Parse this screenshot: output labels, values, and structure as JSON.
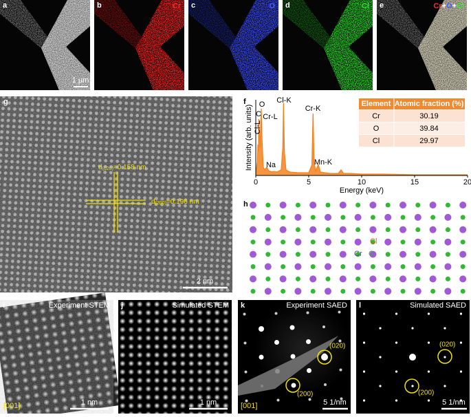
{
  "panels": {
    "a": {
      "letter": "a",
      "scale_bar": "1 μm"
    },
    "b": {
      "letter": "b",
      "label": "Cr"
    },
    "c": {
      "letter": "c",
      "label": "O"
    },
    "d": {
      "letter": "d",
      "label": "Cl"
    },
    "e": {
      "letter": "e",
      "label_parts": [
        "Cr",
        "+",
        "O",
        "+",
        "Cl"
      ]
    },
    "f": {
      "letter": "f",
      "table": {
        "header": [
          "Element",
          "Atomic fraction (%)"
        ],
        "rows": [
          [
            "Cr",
            30.19
          ],
          [
            "O",
            39.84
          ],
          [
            "Cl",
            29.97
          ]
        ]
      }
    },
    "g": {
      "letter": "g",
      "d020": {
        "symbol": "d",
        "subscript": "(020)",
        "text": "=0.158 nm"
      },
      "d200": {
        "symbol": "d",
        "subscript": "(200)",
        "text": "=0.196 nm"
      },
      "scale_bar": "2 nm"
    },
    "h": {
      "letter": "h",
      "labels": [
        "Cl",
        "Cr",
        "O"
      ]
    },
    "i": {
      "letter": "i",
      "title": "Experiment STEM",
      "zone": "[001]",
      "scale_bar": "1 nm"
    },
    "j": {
      "letter": "j",
      "title": "Simulated STEM",
      "scale_bar": "1 nm"
    },
    "k": {
      "letter": "k",
      "title": "Experiment SAED",
      "zone": "[001]",
      "spots": [
        "(020)",
        "(200)"
      ],
      "scale_bar": "5 1/nm"
    },
    "l": {
      "letter": "l",
      "title": "Simulated SAED",
      "spots": [
        "(020)",
        "(200)"
      ],
      "scale_bar": "5 1/nm"
    }
  },
  "chart_data": {
    "type": "line",
    "xlabel": "Energy (keV)",
    "ylabel": "Intensity (arb. units)",
    "color": "#f5821f",
    "x": [
      0,
      0.15,
      0.2,
      0.25,
      0.28,
      0.4,
      0.52,
      0.57,
      0.7,
      0.85,
      1.04,
      1.2,
      1.5,
      1.7,
      2.0,
      2.4,
      2.55,
      2.62,
      2.7,
      2.85,
      3.2,
      4,
      5,
      5.3,
      5.41,
      5.5,
      5.65,
      5.9,
      6.1,
      6.5,
      7,
      7.8,
      8.05,
      8.3,
      9,
      10,
      12,
      15,
      20
    ],
    "values": [
      2,
      20,
      45,
      35,
      82,
      40,
      97,
      60,
      12,
      8,
      12,
      7,
      5,
      6,
      5,
      8,
      40,
      105,
      35,
      8,
      5,
      4,
      4,
      15,
      90,
      20,
      6,
      16,
      5,
      4,
      3,
      3,
      8,
      3,
      3,
      2,
      2,
      1,
      1
    ],
    "annotations": [
      "C",
      "O",
      "Cl-L",
      "Cr-L",
      "Na",
      "Cl-K",
      "Cr-K",
      "Mn-K"
    ],
    "xlim": [
      0,
      20
    ],
    "ylim": [
      0,
      110
    ],
    "xticks": [
      0,
      5,
      10,
      15,
      20
    ]
  }
}
